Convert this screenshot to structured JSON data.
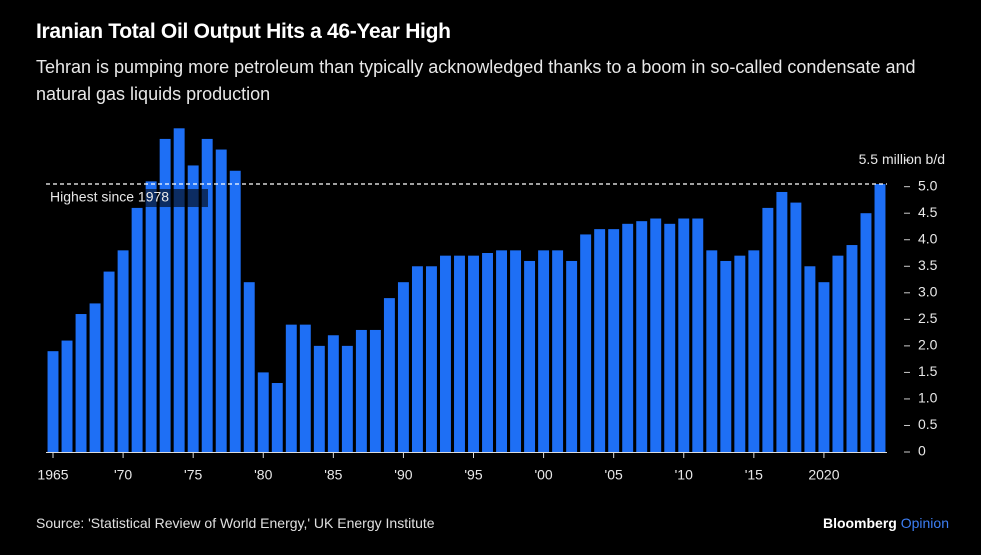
{
  "chart_data": {
    "type": "bar",
    "title": "Iranian Total Oil Output Hits a 46-Year High",
    "subtitle": "Tehran is pumping more petroleum than typically acknowledged thanks to a boom in so-called condensate and natural gas liquids production",
    "source": "Source: 'Statistical Review of World Energy,' UK Energy Institute",
    "brand": [
      "Bloomberg",
      "Opinion"
    ],
    "annotation": "Highest since 1978",
    "reference_line": 5.05,
    "color": "#1e6ff5",
    "x": [
      1965,
      1966,
      1967,
      1968,
      1969,
      1970,
      1971,
      1972,
      1973,
      1974,
      1975,
      1976,
      1977,
      1978,
      1979,
      1980,
      1981,
      1982,
      1983,
      1984,
      1985,
      1986,
      1987,
      1988,
      1989,
      1990,
      1991,
      1992,
      1993,
      1994,
      1995,
      1996,
      1997,
      1998,
      1999,
      2000,
      2001,
      2002,
      2003,
      2004,
      2005,
      2006,
      2007,
      2008,
      2009,
      2010,
      2011,
      2012,
      2013,
      2014,
      2015,
      2016,
      2017,
      2018,
      2019,
      2020,
      2021,
      2022,
      2023,
      2024
    ],
    "values": [
      1.9,
      2.1,
      2.6,
      2.8,
      3.4,
      3.8,
      4.6,
      5.1,
      5.9,
      6.1,
      5.4,
      5.9,
      5.7,
      5.3,
      3.2,
      1.5,
      1.3,
      2.4,
      2.4,
      2.0,
      2.2,
      2.0,
      2.3,
      2.3,
      2.9,
      3.2,
      3.5,
      3.5,
      3.7,
      3.7,
      3.7,
      3.75,
      3.8,
      3.8,
      3.6,
      3.8,
      3.8,
      3.6,
      4.1,
      4.2,
      4.2,
      4.3,
      4.35,
      4.4,
      4.3,
      4.4,
      4.4,
      3.8,
      3.6,
      3.7,
      3.8,
      4.6,
      4.9,
      4.7,
      3.5,
      3.2,
      3.7,
      3.9,
      4.5,
      5.05
    ],
    "xlim": [
      1964.5,
      2024.5
    ],
    "xticks": [
      {
        "value": 1965,
        "label": "1965"
      },
      {
        "value": 1970,
        "label": "'70"
      },
      {
        "value": 1975,
        "label": "'75"
      },
      {
        "value": 1980,
        "label": "'80"
      },
      {
        "value": 1985,
        "label": "'85"
      },
      {
        "value": 1990,
        "label": "'90"
      },
      {
        "value": 1995,
        "label": "'95"
      },
      {
        "value": 2000,
        "label": "'00"
      },
      {
        "value": 2005,
        "label": "'05"
      },
      {
        "value": 2010,
        "label": "'10"
      },
      {
        "value": 2015,
        "label": "'15"
      },
      2020
    ],
    "ylim": [
      0,
      6.2
    ],
    "yticks": [
      0,
      0.5,
      {
        "value": 1,
        "label": "1.0"
      },
      1.5,
      {
        "value": 2,
        "label": "2.0"
      },
      2.5,
      {
        "value": 3,
        "label": "3.0"
      },
      3.5,
      {
        "value": 4,
        "label": "4.0"
      },
      4.5,
      {
        "value": 5,
        "label": "5.0"
      },
      {
        "value": 5.5,
        "label": "5.5 million b/d"
      }
    ]
  }
}
